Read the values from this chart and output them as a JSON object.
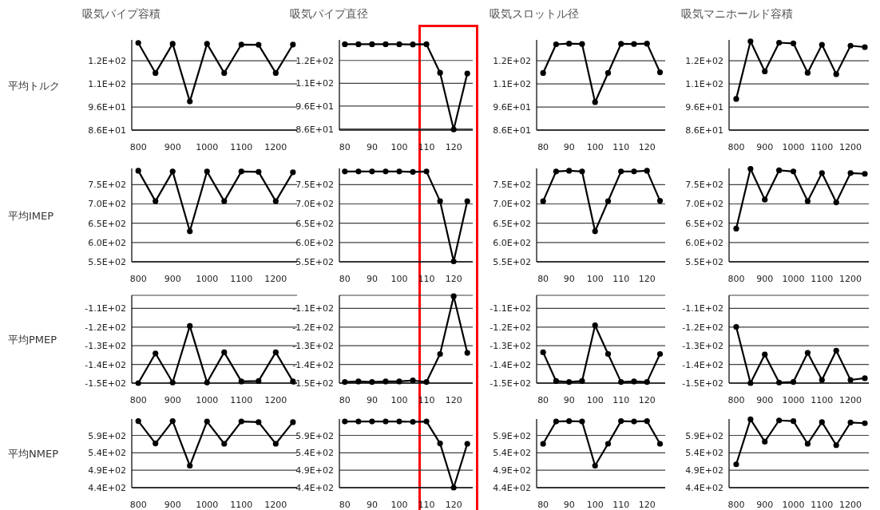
{
  "chart_data": [
    {
      "type": "line",
      "title": "吸気パイプ容積",
      "ylabel": "平均トルク",
      "x": [
        800,
        850,
        900,
        950,
        1000,
        1050,
        1100,
        1150,
        1200,
        1250
      ],
      "series": [
        {
          "color": "#000000",
          "values": [
            123.7,
            110.7,
            123.3,
            98.4,
            123.3,
            110.7,
            123.0,
            122.9,
            110.7,
            123.0
          ]
        }
      ],
      "xlim": [
        781,
        1262
      ],
      "xticks": [
        800,
        900,
        1000,
        1100,
        1200
      ],
      "ylim": [
        86,
        125
      ],
      "yticks": [
        {
          "value": 86,
          "label": "8.6E+01"
        },
        {
          "value": 96,
          "label": "9.6E+01"
        },
        {
          "value": 106,
          "label": "1.1E+02"
        },
        {
          "value": 116,
          "label": "1.2E+02"
        }
      ],
      "grid": "y",
      "marker": "circle"
    },
    {
      "type": "line",
      "title": "吸気パイプ直径",
      "x": [
        80,
        85,
        90,
        95,
        100,
        105,
        110,
        115,
        120,
        125
      ],
      "series": [
        {
          "color": "#000000",
          "values": [
            123.1,
            123.1,
            123.1,
            123.1,
            123.1,
            123.0,
            123.1,
            110.6,
            85.8,
            110.3
          ]
        }
      ],
      "xlim": [
        78,
        127
      ],
      "xticks": [
        80,
        90,
        100,
        110,
        120
      ],
      "ylim": [
        85.5,
        125
      ],
      "yticks": [
        {
          "value": 86,
          "label": "8.6E+01"
        },
        {
          "value": 96,
          "label": "9.6E+01"
        },
        {
          "value": 106,
          "label": "1.1E+02"
        },
        {
          "value": 116,
          "label": "1.2E+02"
        }
      ],
      "grid": "y",
      "marker": "circle"
    },
    {
      "type": "line",
      "title": "吸気スロットル径",
      "x": [
        80,
        85,
        90,
        95,
        100,
        105,
        110,
        115,
        120,
        125
      ],
      "series": [
        {
          "color": "#000000",
          "values": [
            110.7,
            123.1,
            123.4,
            123.2,
            98.1,
            110.7,
            123.3,
            123.2,
            123.4,
            111.0
          ]
        }
      ],
      "xlim": [
        77.5,
        127
      ],
      "xticks": [
        80,
        90,
        100,
        110,
        120
      ],
      "ylim": [
        86,
        125
      ],
      "yticks": [
        {
          "value": 86,
          "label": "8.6E+01"
        },
        {
          "value": 96,
          "label": "9.6E+01"
        },
        {
          "value": 106,
          "label": "1.1E+02"
        },
        {
          "value": 116,
          "label": "1.2E+02"
        }
      ],
      "grid": "y",
      "marker": "circle"
    },
    {
      "type": "line",
      "title": "吸気マニホールド容積",
      "x": [
        800,
        850,
        900,
        950,
        1000,
        1050,
        1100,
        1150,
        1200,
        1250
      ],
      "series": [
        {
          "color": "#000000",
          "values": [
            99.5,
            124.4,
            111.4,
            123.8,
            123.5,
            110.8,
            122.9,
            110.2,
            122.5,
            121.9
          ]
        }
      ],
      "xlim": [
        775,
        1264
      ],
      "xticks": [
        800,
        900,
        1000,
        1100,
        1200
      ],
      "ylim": [
        86,
        125
      ],
      "yticks": [
        {
          "value": 86,
          "label": "8.6E+01"
        },
        {
          "value": 96,
          "label": "9.6E+01"
        },
        {
          "value": 106,
          "label": "1.1E+02"
        },
        {
          "value": 116,
          "label": "1.2E+02"
        }
      ],
      "grid": "y",
      "marker": "circle"
    },
    {
      "type": "line",
      "ylabel": "平均IMEP",
      "x": [
        800,
        850,
        900,
        950,
        1000,
        1050,
        1100,
        1150,
        1200,
        1250
      ],
      "series": [
        {
          "color": "#000000",
          "values": [
            786,
            707,
            784,
            629,
            784,
            707,
            784,
            783,
            707,
            782
          ]
        }
      ],
      "xlim": [
        781,
        1262
      ],
      "xticks": [
        800,
        900,
        1000,
        1100,
        1200
      ],
      "ylim": [
        550,
        792
      ],
      "yticks": [
        {
          "value": 550,
          "label": "5.5E+02"
        },
        {
          "value": 600,
          "label": "6.0E+02"
        },
        {
          "value": 650,
          "label": "6.5E+02"
        },
        {
          "value": 700,
          "label": "7.0E+02"
        },
        {
          "value": 750,
          "label": "7.5E+02"
        }
      ],
      "grid": "y",
      "marker": "circle"
    },
    {
      "type": "line",
      "x": [
        80,
        85,
        90,
        95,
        100,
        105,
        110,
        115,
        120,
        125
      ],
      "series": [
        {
          "color": "#000000",
          "values": [
            784,
            784,
            784,
            784,
            784,
            783,
            784,
            707,
            551,
            707
          ]
        }
      ],
      "xlim": [
        78,
        127
      ],
      "xticks": [
        80,
        90,
        100,
        110,
        120
      ],
      "ylim": [
        550,
        792
      ],
      "yticks": [
        {
          "value": 550,
          "label": "5.5E+02"
        },
        {
          "value": 600,
          "label": "6.0E+02"
        },
        {
          "value": 650,
          "label": "6.5E+02"
        },
        {
          "value": 700,
          "label": "7.0E+02"
        },
        {
          "value": 750,
          "label": "7.5E+02"
        }
      ],
      "grid": "y",
      "marker": "circle"
    },
    {
      "type": "line",
      "x": [
        80,
        85,
        90,
        95,
        100,
        105,
        110,
        115,
        120,
        125
      ],
      "series": [
        {
          "color": "#000000",
          "values": [
            707,
            784,
            786,
            784,
            629,
            707,
            784,
            784,
            786,
            708
          ]
        }
      ],
      "xlim": [
        77.5,
        127
      ],
      "xticks": [
        80,
        90,
        100,
        110,
        120
      ],
      "ylim": [
        550,
        792
      ],
      "yticks": [
        {
          "value": 550,
          "label": "5.5E+02"
        },
        {
          "value": 600,
          "label": "6.0E+02"
        },
        {
          "value": 650,
          "label": "6.5E+02"
        },
        {
          "value": 700,
          "label": "7.0E+02"
        },
        {
          "value": 750,
          "label": "7.5E+02"
        }
      ],
      "grid": "y",
      "marker": "circle"
    },
    {
      "type": "line",
      "x": [
        800,
        850,
        900,
        950,
        1000,
        1050,
        1100,
        1150,
        1200,
        1250
      ],
      "series": [
        {
          "color": "#000000",
          "values": [
            636,
            791,
            711,
            787,
            784,
            707,
            780,
            704,
            780,
            778
          ]
        }
      ],
      "xlim": [
        775,
        1264
      ],
      "xticks": [
        800,
        900,
        1000,
        1100,
        1200
      ],
      "ylim": [
        550,
        792
      ],
      "yticks": [
        {
          "value": 550,
          "label": "5.5E+02"
        },
        {
          "value": 600,
          "label": "6.0E+02"
        },
        {
          "value": 650,
          "label": "6.5E+02"
        },
        {
          "value": 700,
          "label": "7.0E+02"
        },
        {
          "value": 750,
          "label": "7.5E+02"
        }
      ],
      "grid": "y",
      "marker": "circle"
    },
    {
      "type": "line",
      "ylabel": "平均PMEP",
      "x": [
        800,
        850,
        900,
        950,
        1000,
        1050,
        1100,
        1150,
        1200,
        1250
      ],
      "series": [
        {
          "color": "#000000",
          "values": [
            -150,
            -134.1,
            -149.7,
            -119.4,
            -149.7,
            -133.5,
            -149.1,
            -148.9,
            -133.5,
            -149.1
          ]
        }
      ],
      "xlim": [
        781,
        1262
      ],
      "xticks": [
        800,
        900,
        1000,
        1100,
        1200
      ],
      "ylim": [
        -150,
        -103
      ],
      "yticks": [
        {
          "value": -150,
          "label": "-1.5E+02"
        },
        {
          "value": -140,
          "label": "-1.4E+02"
        },
        {
          "value": -130,
          "label": "-1.3E+02"
        },
        {
          "value": -120,
          "label": "-1.2E+02"
        },
        {
          "value": -110,
          "label": "-1.1E+02"
        },
        {
          "value": -103,
          "label": null
        }
      ],
      "grid": "y",
      "marker": "circle"
    },
    {
      "type": "line",
      "x": [
        80,
        85,
        90,
        95,
        100,
        105,
        110,
        115,
        120,
        125
      ],
      "series": [
        {
          "color": "#000000",
          "values": [
            -149.4,
            -149.1,
            -149.4,
            -149.1,
            -149.1,
            -148.6,
            -149.4,
            -134.4,
            -103.5,
            -133.8
          ]
        }
      ],
      "xlim": [
        78,
        127
      ],
      "xticks": [
        80,
        90,
        100,
        110,
        120
      ],
      "ylim": [
        -150,
        -103
      ],
      "yticks": [
        {
          "value": -150,
          "label": "-1.5E+02"
        },
        {
          "value": -140,
          "label": "-1.4E+02"
        },
        {
          "value": -130,
          "label": "-1.3E+02"
        },
        {
          "value": -120,
          "label": "-1.2E+02"
        },
        {
          "value": -110,
          "label": "-1.1E+02"
        },
        {
          "value": -103,
          "label": null
        }
      ],
      "grid": "y",
      "marker": "circle"
    },
    {
      "type": "line",
      "x": [
        80,
        85,
        90,
        95,
        100,
        105,
        110,
        115,
        120,
        125
      ],
      "series": [
        {
          "color": "#000000",
          "values": [
            -133.5,
            -148.9,
            -149.4,
            -148.9,
            -119.1,
            -134.4,
            -149.4,
            -149.1,
            -149.4,
            -134.4
          ]
        }
      ],
      "xlim": [
        77.5,
        127
      ],
      "xticks": [
        80,
        90,
        100,
        110,
        120
      ],
      "ylim": [
        -150,
        -103
      ],
      "yticks": [
        {
          "value": -150,
          "label": "-1.5E+02"
        },
        {
          "value": -140,
          "label": "-1.4E+02"
        },
        {
          "value": -130,
          "label": "-1.3E+02"
        },
        {
          "value": -120,
          "label": "-1.2E+02"
        },
        {
          "value": -110,
          "label": "-1.1E+02"
        },
        {
          "value": -103,
          "label": null
        }
      ],
      "grid": "y",
      "marker": "circle"
    },
    {
      "type": "line",
      "x": [
        800,
        850,
        900,
        950,
        1000,
        1050,
        1100,
        1150,
        1200,
        1250
      ],
      "series": [
        {
          "color": "#000000",
          "values": [
            -119.9,
            -150,
            -134.7,
            -149.7,
            -149.4,
            -133.8,
            -148.3,
            -132.6,
            -148.3,
            -147.4
          ]
        }
      ],
      "xlim": [
        775,
        1264
      ],
      "xticks": [
        800,
        900,
        1000,
        1100,
        1200
      ],
      "ylim": [
        -150,
        -103
      ],
      "yticks": [
        {
          "value": -150,
          "label": "-1.5E+02"
        },
        {
          "value": -140,
          "label": "-1.4E+02"
        },
        {
          "value": -130,
          "label": "-1.3E+02"
        },
        {
          "value": -120,
          "label": "-1.2E+02"
        },
        {
          "value": -110,
          "label": "-1.1E+02"
        },
        {
          "value": -103,
          "label": null
        }
      ],
      "grid": "y",
      "marker": "circle"
    },
    {
      "type": "line",
      "ylabel": "平均NMEP",
      "x": [
        800,
        850,
        900,
        950,
        1000,
        1050,
        1100,
        1150,
        1200,
        1250
      ],
      "series": [
        {
          "color": "#000000",
          "values": [
            631,
            567,
            631,
            503,
            630,
            566,
            630,
            628,
            566,
            628
          ]
        }
      ],
      "xlim": [
        781,
        1262
      ],
      "xticks": [
        800,
        900,
        1000,
        1100,
        1200
      ],
      "ylim": [
        440,
        637
      ],
      "yticks": [
        {
          "value": 440,
          "label": "4.4E+02"
        },
        {
          "value": 490,
          "label": "4.9E+02"
        },
        {
          "value": 540,
          "label": "5.4E+02"
        },
        {
          "value": 590,
          "label": "5.9E+02"
        }
      ],
      "grid": "y",
      "marker": "circle"
    },
    {
      "type": "line",
      "x": [
        80,
        85,
        90,
        95,
        100,
        105,
        110,
        115,
        120,
        125
      ],
      "series": [
        {
          "color": "#000000",
          "values": [
            630,
            630,
            630,
            630,
            630,
            629,
            630,
            567,
            440,
            566
          ]
        }
      ],
      "xlim": [
        78,
        127
      ],
      "xticks": [
        80,
        90,
        100,
        110,
        120
      ],
      "ylim": [
        440,
        637
      ],
      "yticks": [
        {
          "value": 440,
          "label": "4.4E+02"
        },
        {
          "value": 490,
          "label": "4.9E+02"
        },
        {
          "value": 540,
          "label": "5.4E+02"
        },
        {
          "value": 590,
          "label": "5.9E+02"
        }
      ],
      "grid": "y",
      "marker": "circle"
    },
    {
      "type": "line",
      "x": [
        80,
        85,
        90,
        95,
        100,
        105,
        110,
        115,
        120,
        125
      ],
      "series": [
        {
          "color": "#000000",
          "values": [
            566,
            630,
            631,
            630,
            503,
            566,
            631,
            630,
            631,
            566
          ]
        }
      ],
      "xlim": [
        77.5,
        127
      ],
      "xticks": [
        80,
        90,
        100,
        110,
        120
      ],
      "ylim": [
        440,
        637
      ],
      "yticks": [
        {
          "value": 440,
          "label": "4.4E+02"
        },
        {
          "value": 490,
          "label": "4.9E+02"
        },
        {
          "value": 540,
          "label": "5.4E+02"
        },
        {
          "value": 590,
          "label": "5.9E+02"
        }
      ],
      "grid": "y",
      "marker": "circle"
    },
    {
      "type": "line",
      "x": [
        800,
        850,
        900,
        950,
        1000,
        1050,
        1100,
        1150,
        1200,
        1250
      ],
      "series": [
        {
          "color": "#000000",
          "values": [
            507,
            636,
            572,
            633,
            631,
            566,
            628,
            562,
            627,
            625
          ]
        }
      ],
      "xlim": [
        775,
        1264
      ],
      "xticks": [
        800,
        900,
        1000,
        1100,
        1200
      ],
      "ylim": [
        440,
        637
      ],
      "yticks": [
        {
          "value": 440,
          "label": "4.4E+02"
        },
        {
          "value": 490,
          "label": "4.9E+02"
        },
        {
          "value": 540,
          "label": "5.4E+02"
        },
        {
          "value": 590,
          "label": "5.9E+02"
        }
      ],
      "grid": "y",
      "marker": "circle"
    }
  ]
}
